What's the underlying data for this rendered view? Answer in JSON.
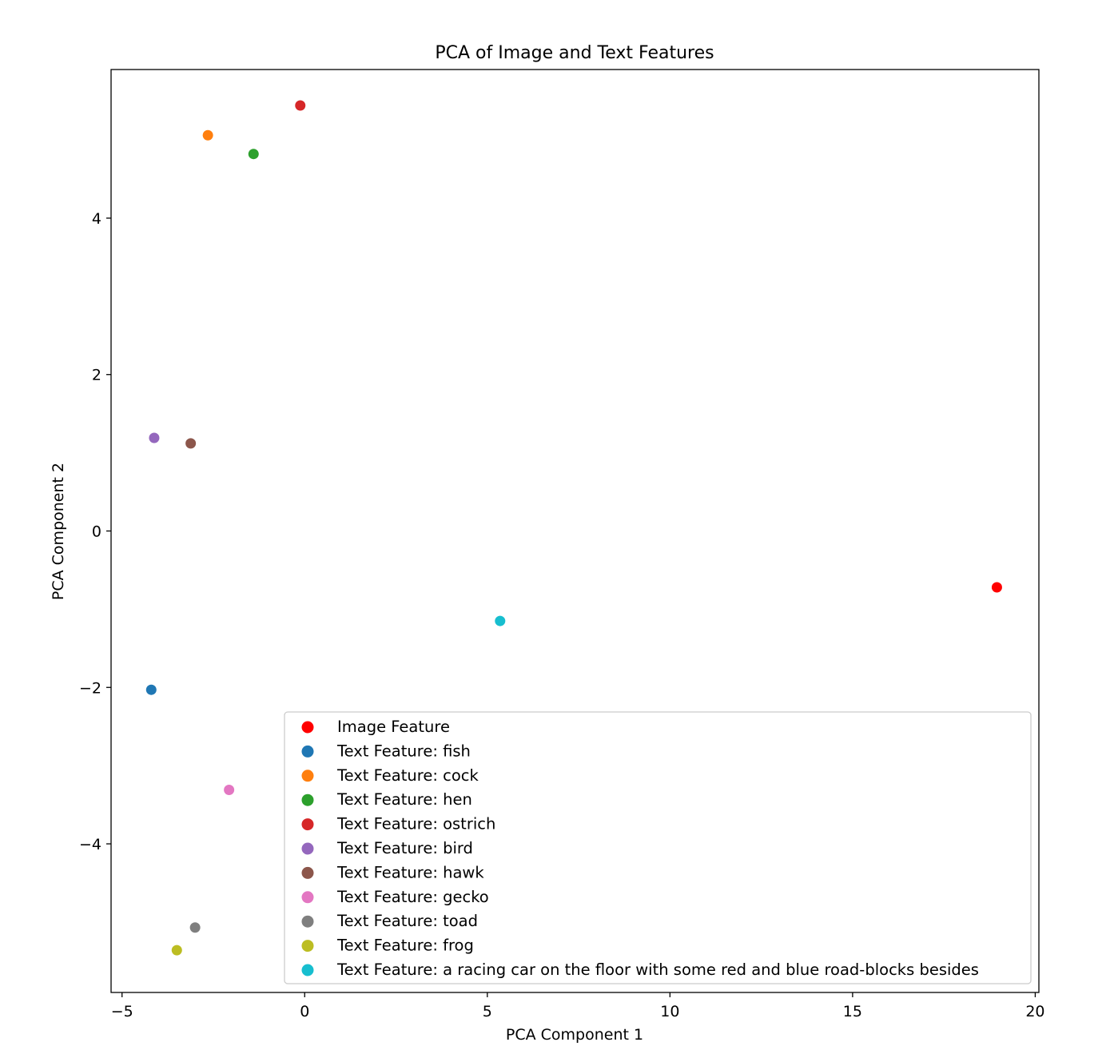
{
  "chart_data": {
    "type": "scatter",
    "title": "PCA of Image and Text Features",
    "xlabel": "PCA Component 1",
    "ylabel": "PCA Component 2",
    "xlim": [
      -5.3,
      20.1
    ],
    "ylim": [
      -5.9,
      5.9
    ],
    "xticks": [
      -5,
      0,
      5,
      10,
      15,
      20
    ],
    "xtick_labels": [
      "−5",
      "0",
      "5",
      "10",
      "15",
      "20"
    ],
    "yticks": [
      -4,
      -2,
      0,
      2,
      4
    ],
    "ytick_labels": [
      "−4",
      "−2",
      "0",
      "2",
      "4"
    ],
    "grid": false,
    "legend_position": "lower-right",
    "series": [
      {
        "name": "Image Feature",
        "color": "#ff0000",
        "x": [
          18.95
        ],
        "y": [
          -0.72
        ]
      },
      {
        "name": "Text Feature: fish",
        "color": "#1f77b4",
        "x": [
          -4.2
        ],
        "y": [
          -2.03
        ]
      },
      {
        "name": "Text Feature: cock",
        "color": "#ff7f0e",
        "x": [
          -2.65
        ],
        "y": [
          5.06
        ]
      },
      {
        "name": "Text Feature: hen",
        "color": "#2ca02c",
        "x": [
          -1.4
        ],
        "y": [
          4.82
        ]
      },
      {
        "name": "Text Feature: ostrich",
        "color": "#d62728",
        "x": [
          -0.12
        ],
        "y": [
          5.44
        ]
      },
      {
        "name": "Text Feature: bird",
        "color": "#9467bd",
        "x": [
          -4.12
        ],
        "y": [
          1.19
        ]
      },
      {
        "name": "Text Feature: hawk",
        "color": "#8c564b",
        "x": [
          -3.12
        ],
        "y": [
          1.12
        ]
      },
      {
        "name": "Text Feature: gecko",
        "color": "#e377c2",
        "x": [
          -2.07
        ],
        "y": [
          -3.31
        ]
      },
      {
        "name": "Text Feature: toad",
        "color": "#7f7f7f",
        "x": [
          -3.0
        ],
        "y": [
          -5.07
        ]
      },
      {
        "name": "Text Feature: frog",
        "color": "#bcbd22",
        "x": [
          -3.5
        ],
        "y": [
          -5.36
        ]
      },
      {
        "name": "Text Feature: a racing car on the floor with some red and blue road-blocks besides",
        "color": "#17becf",
        "x": [
          5.35
        ],
        "y": [
          -1.15
        ]
      }
    ]
  }
}
